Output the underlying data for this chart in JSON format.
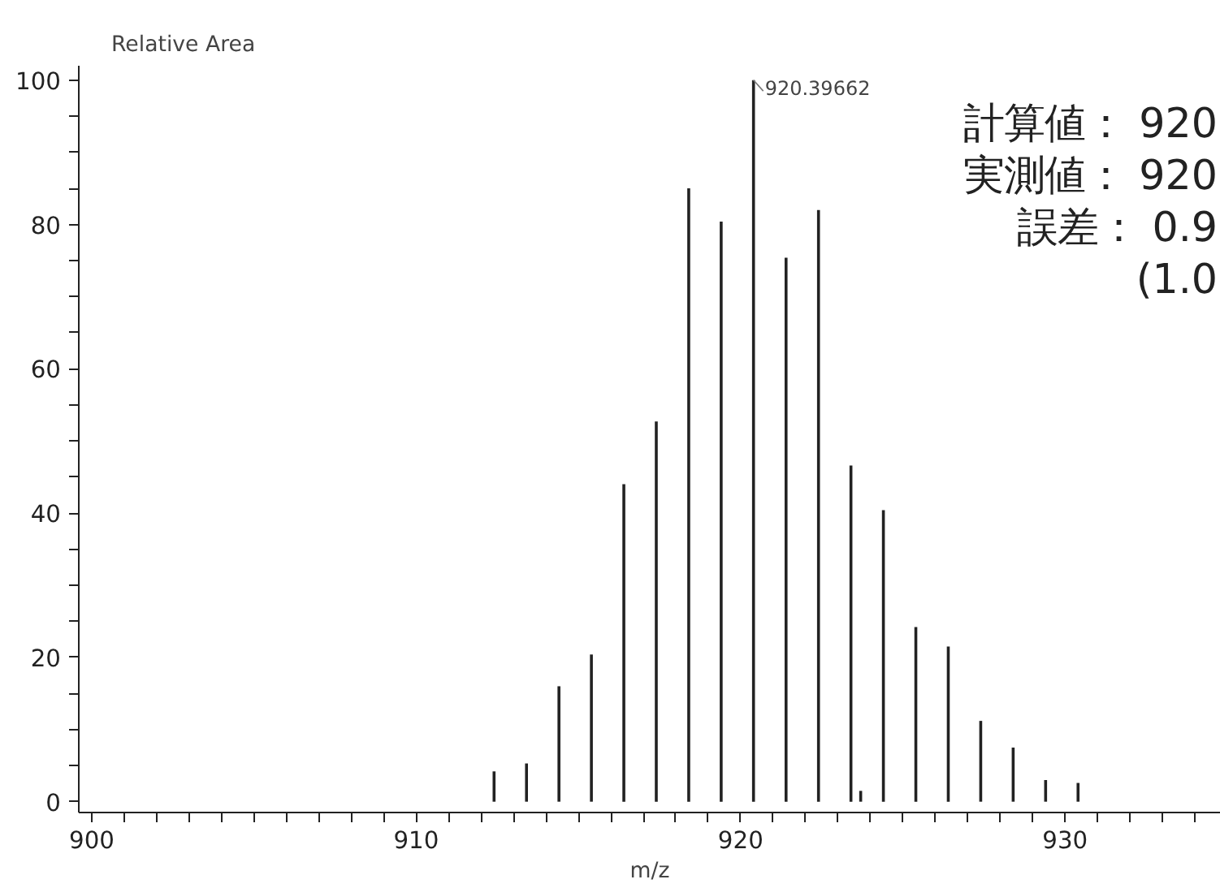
{
  "chart_data": {
    "type": "bar",
    "xlabel": "m/z",
    "ylabel": "Relative Area",
    "x": [
      912.4,
      913.4,
      914.4,
      915.4,
      916.4,
      917.4,
      918.4,
      919.4,
      920.39662,
      921.4,
      922.4,
      923.4,
      923.7,
      924.4,
      925.4,
      926.4,
      927.4,
      928.4,
      929.4,
      930.4
    ],
    "values": [
      4.2,
      5.3,
      16,
      20.4,
      44,
      52.7,
      85,
      80.4,
      100,
      75.4,
      82,
      46.6,
      1.5,
      40.4,
      24.2,
      21.5,
      11.2,
      7.5,
      3,
      2.6
    ],
    "color": "#222222",
    "xlim": [
      899.6,
      934.8
    ],
    "xticks": [
      900,
      {
        "value": 901,
        "label": null
      },
      {
        "value": 902,
        "label": null
      },
      {
        "value": 903,
        "label": null
      },
      {
        "value": 904,
        "label": null
      },
      {
        "value": 905,
        "label": null
      },
      {
        "value": 906,
        "label": null
      },
      {
        "value": 907,
        "label": null
      },
      {
        "value": 908,
        "label": null
      },
      {
        "value": 909,
        "label": null
      },
      910,
      {
        "value": 911,
        "label": null
      },
      {
        "value": 912,
        "label": null
      },
      {
        "value": 913,
        "label": null
      },
      {
        "value": 914,
        "label": null
      },
      {
        "value": 915,
        "label": null
      },
      {
        "value": 916,
        "label": null
      },
      {
        "value": 917,
        "label": null
      },
      {
        "value": 918,
        "label": null
      },
      {
        "value": 919,
        "label": null
      },
      920,
      {
        "value": 921,
        "label": null
      },
      {
        "value": 922,
        "label": null
      },
      {
        "value": 923,
        "label": null
      },
      {
        "value": 924,
        "label": null
      },
      {
        "value": 925,
        "label": null
      },
      {
        "value": 926,
        "label": null
      },
      {
        "value": 927,
        "label": null
      },
      {
        "value": 928,
        "label": null
      },
      {
        "value": 929,
        "label": null
      },
      930,
      {
        "value": 931,
        "label": null
      },
      {
        "value": 932,
        "label": null
      },
      {
        "value": 933,
        "label": null
      },
      {
        "value": 934,
        "label": null
      }
    ],
    "ylim": [
      -1.5,
      102
    ],
    "yticks": [
      0,
      {
        "value": 5,
        "label": null
      },
      {
        "value": 10,
        "label": null
      },
      {
        "value": 15,
        "label": null
      },
      20,
      {
        "value": 25,
        "label": null
      },
      {
        "value": 30,
        "label": null
      },
      {
        "value": 35,
        "label": null
      },
      40,
      {
        "value": 45,
        "label": null
      },
      {
        "value": 50,
        "label": null
      },
      {
        "value": 55,
        "label": null
      },
      60,
      {
        "value": 65,
        "label": null
      },
      {
        "value": 70,
        "label": null
      },
      {
        "value": 75,
        "label": null
      },
      80,
      {
        "value": 85,
        "label": null
      },
      {
        "value": 90,
        "label": null
      },
      {
        "value": 95,
        "label": null
      },
      100
    ],
    "grid": false,
    "annotations": [
      {
        "text": "920.39662",
        "x": 920.39662,
        "y": 100
      },
      "計算値： 920",
      "実測値： 920",
      "誤差： 0.9",
      "(1.0"
    ]
  }
}
